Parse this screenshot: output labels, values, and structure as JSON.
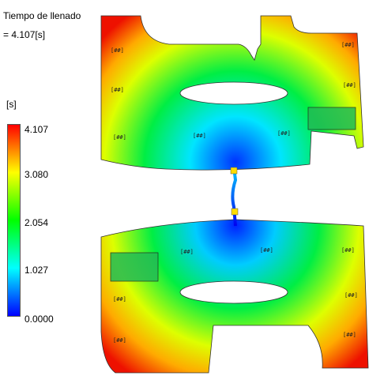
{
  "legend": {
    "title": "Tiempo de llenado",
    "value": "= 4.107[s]",
    "unit": "[s]",
    "ticks": [
      "4.107",
      "3.080",
      "2.054",
      "1.027",
      "0.0000"
    ],
    "colors": [
      "#0000ff",
      "#00ffff",
      "#00ff00",
      "#ffff00",
      "#ff0000"
    ]
  }
}
